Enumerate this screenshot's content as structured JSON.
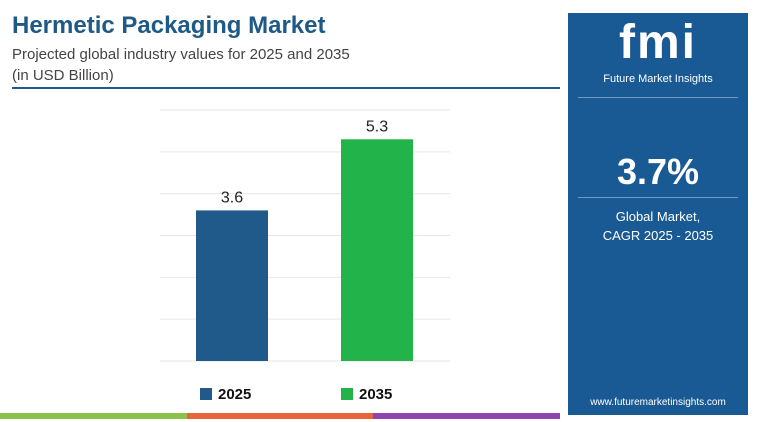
{
  "header": {
    "title": "Hermetic Packaging Market",
    "subtitle_line1": "Projected global industry values for 2025 and 2035",
    "subtitle_line2": "(in USD Billion)"
  },
  "chart_data": {
    "type": "bar",
    "categories": [
      "2025",
      "2035"
    ],
    "values": [
      3.6,
      5.3
    ],
    "value_labels": [
      "3.6",
      "5.3"
    ],
    "colors": [
      "#1f5a8a",
      "#22b34a"
    ],
    "ylim": [
      0,
      6
    ],
    "grid": true,
    "legend": {
      "placement": "bottom",
      "entries": [
        {
          "label": "2025",
          "color": "#1f5a8a"
        },
        {
          "label": "2035",
          "color": "#22b34a"
        }
      ]
    }
  },
  "panel": {
    "logo_text": "fmi",
    "logo_subtitle": "Future Market Insights",
    "cagr_value": "3.7%",
    "cagr_label_line1": "Global Market,",
    "cagr_label_line2": "CAGR 2025 - 2035",
    "url": "www.futuremarketinsights.com",
    "background_color": "#1a5a94"
  },
  "bottom_bar_colors": [
    "#8bc34a",
    "#e8643b",
    "#8e44ad"
  ]
}
